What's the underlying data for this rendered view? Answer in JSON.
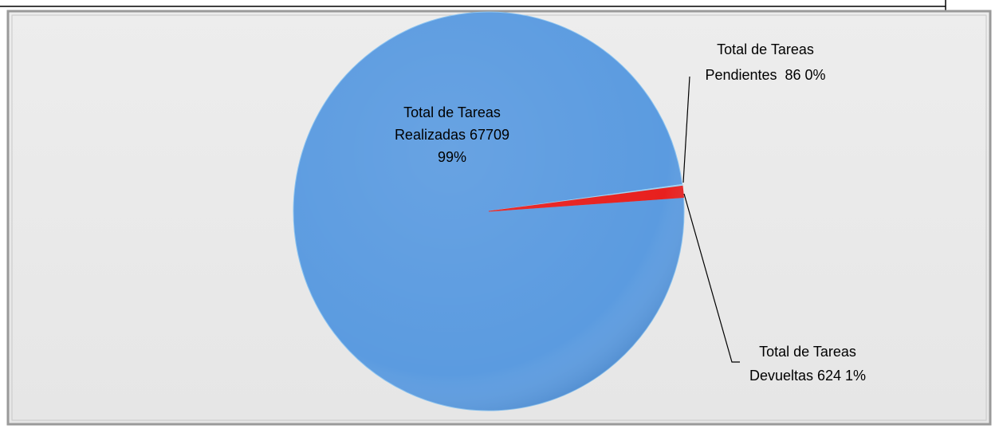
{
  "chart_data": {
    "type": "pie",
    "values": [
      67709,
      86,
      624
    ],
    "colors": [
      "#5b9be0",
      "#9fd3f2",
      "#e8201e"
    ],
    "value_labels": [
      [
        "Total de Tareas",
        "Realizadas 67709",
        "99%"
      ],
      [
        "Total de Tareas",
        "Pendientes  86 0%"
      ],
      [
        "Total de Tareas",
        "Devueltas 624 1%"
      ]
    ]
  }
}
